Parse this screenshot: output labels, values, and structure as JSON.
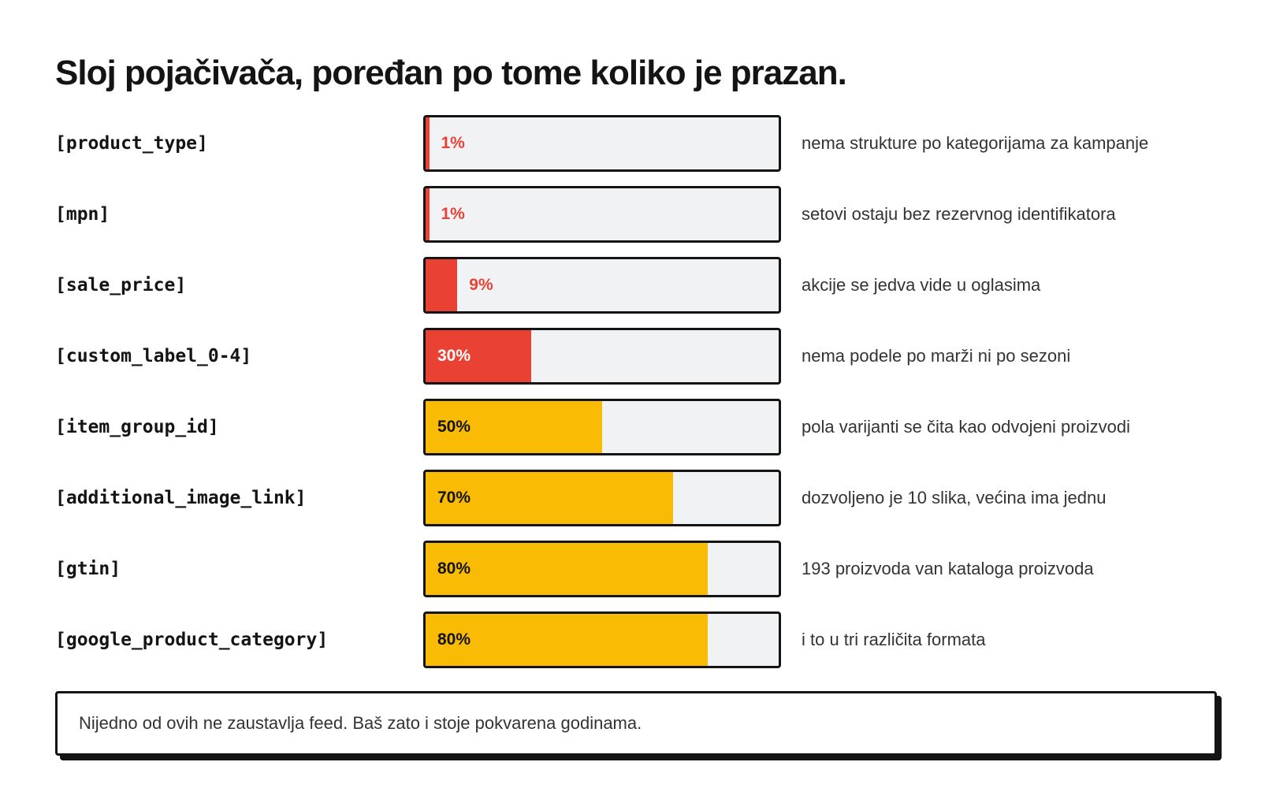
{
  "title": "Sloj pojačivača, poređan po tome koliko je prazan.",
  "colors": {
    "critical": "#e94235",
    "warning": "#f9bb04",
    "track": "#f1f2f4",
    "border": "#141414"
  },
  "chart_data": {
    "type": "bar",
    "orientation": "horizontal",
    "title": "Sloj pojačivača, poređan po tome koliko je prazan.",
    "value_unit": "%",
    "xlim": [
      0,
      100
    ],
    "categories": [
      "[product_type]",
      "[mpn]",
      "[sale_price]",
      "[custom_label_0-4]",
      "[item_group_id]",
      "[additional_image_link]",
      "[gtin]",
      "[google_product_category]"
    ],
    "values": [
      1,
      1,
      9,
      30,
      50,
      70,
      80,
      80
    ],
    "value_labels": [
      "1%",
      "1%",
      "9%",
      "30%",
      "50%",
      "70%",
      "80%",
      "80%"
    ],
    "bar_colors": [
      "#e94235",
      "#e94235",
      "#e94235",
      "#e94235",
      "#f9bb04",
      "#f9bb04",
      "#f9bb04",
      "#f9bb04"
    ],
    "annotations": [
      "nema strukture po kategorijama za kampanje",
      "setovi ostaju bez rezervnog identifikatora",
      "akcije se jedva vide u oglasima",
      "nema podele po marži ni po sezoni",
      "pola varijanti se čita kao odvojeni proizvodi",
      "dozvoljeno je 10 slika, većina ima jednu",
      "193 proizvoda van kataloga proizvoda",
      "i to u tri različita formata"
    ]
  },
  "footer": {
    "note": "Nijedno od ovih ne zaustavlja feed. Baš zato i stoje pokvarena godinama."
  }
}
